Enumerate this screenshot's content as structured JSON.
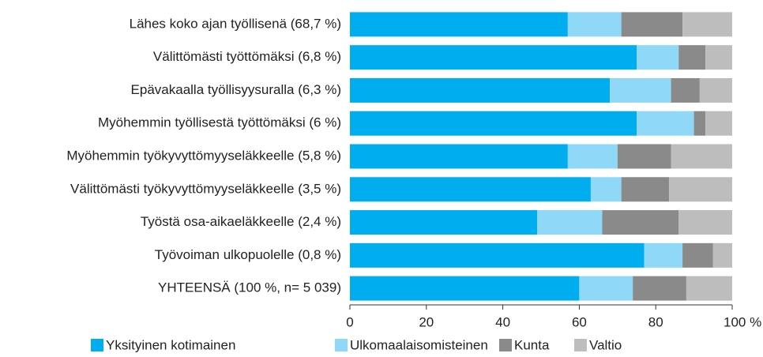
{
  "chart_data": {
    "type": "bar",
    "orientation": "horizontal",
    "stacked": true,
    "categories": [
      "Lähes koko ajan työllisenä (68,7 %)",
      "Välittömästi työttömäksi (6,8 %)",
      "Epävakaalla työllisyysuralla (6,3 %)",
      "Myöhemmin työllisestä työttömäksi (6 %)",
      "Myöhemmin työkyvyttömyyseläkkeelle (5,8 %)",
      "Välittömästi työkyvyttömyyseläkkeelle (3,5 %)",
      "Työstä osa-aikaeläkkeelle (2,4 %)",
      "Työvoiman ulkopuolelle (0,8 %)",
      "YHTEENSÄ (100 %, n= 5 039)"
    ],
    "series": [
      {
        "name": "Yksityinen kotimainen",
        "color": "#00aeef",
        "values": [
          57,
          75,
          68,
          75,
          57,
          63,
          49,
          77,
          60
        ]
      },
      {
        "name": "Ulkomaalaisomisteinen",
        "color": "#8fd8f8",
        "values": [
          14,
          11,
          16,
          15,
          13,
          8,
          17,
          10,
          14
        ]
      },
      {
        "name": "Kunta",
        "color": "#8a8a8a",
        "values": [
          16,
          7,
          7.5,
          3,
          14,
          12.5,
          20,
          8,
          14
        ]
      },
      {
        "name": "Valtio",
        "color": "#bdbdbd",
        "values": [
          13,
          7,
          8.5,
          7,
          16,
          16.5,
          14,
          5,
          12
        ]
      }
    ],
    "xlim": [
      0,
      100
    ],
    "xticks": [
      0,
      20,
      40,
      60,
      80,
      {
        "value": 100,
        "label": "100 %"
      }
    ],
    "legend": "bottom"
  }
}
